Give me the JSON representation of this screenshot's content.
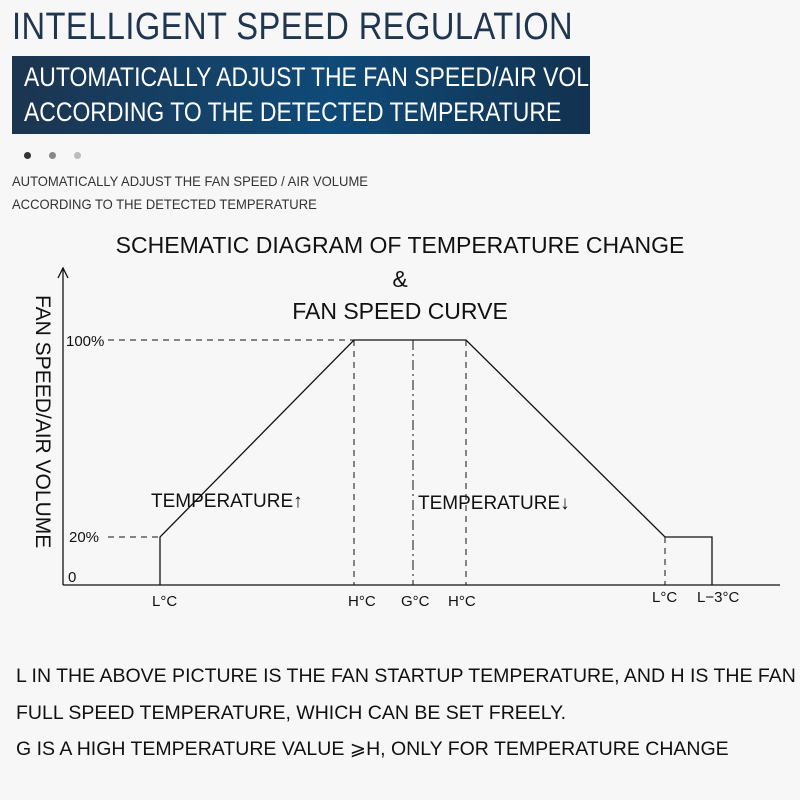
{
  "header": {
    "title": "INTELLIGENT SPEED REGULATION",
    "banner_line1": "AUTOMATICALLY ADJUST THE FAN SPEED/AIR VOLUME",
    "banner_line2": "ACCORDING TO THE DETECTED TEMPERATURE",
    "carousel_dots": 3
  },
  "subtitle": {
    "line1": "AUTOMATICALLY ADJUST THE FAN SPEED / AIR VOLUME",
    "line2": "ACCORDING TO THE DETECTED TEMPERATURE"
  },
  "diagram": {
    "title_line1": "SCHEMATIC DIAGRAM OF TEMPERATURE CHANGE",
    "title_line2": "&",
    "title_line3": "FAN SPEED CURVE",
    "y_axis_label": "FAN SPEED/AIR VOLUME",
    "y_ticks": {
      "top": "100%",
      "low": "20%",
      "zero": "0"
    },
    "x_ticks": [
      "L°C",
      "H°C",
      "G°C",
      "H°C",
      "L°C",
      "L−3°C"
    ],
    "rising_label": "TEMPERATURE",
    "rising_arrow": "↑",
    "falling_label": "TEMPERATURE",
    "falling_arrow": "↓"
  },
  "footer": {
    "line1": "L IN THE ABOVE PICTURE IS THE FAN STARTUP TEMPERATURE, AND H IS THE FAN",
    "line2": "FULL SPEED TEMPERATURE, WHICH CAN BE SET FREELY.",
    "line3": "G IS A HIGH TEMPERATURE VALUE ⩾H, ONLY FOR TEMPERATURE CHANGE"
  },
  "colors": {
    "title": "#1f3550",
    "banner": "#0f4a78",
    "dot_active": "#333333",
    "dot_inactive": "#999999",
    "line": "#111111"
  }
}
